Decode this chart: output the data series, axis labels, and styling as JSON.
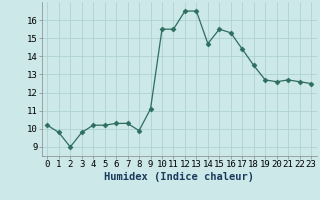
{
  "x": [
    0,
    1,
    2,
    3,
    4,
    5,
    6,
    7,
    8,
    9,
    10,
    11,
    12,
    13,
    14,
    15,
    16,
    17,
    18,
    19,
    20,
    21,
    22,
    23
  ],
  "y": [
    10.2,
    9.8,
    9.0,
    9.8,
    10.2,
    10.2,
    10.3,
    10.3,
    9.9,
    11.1,
    15.5,
    15.5,
    16.5,
    16.5,
    14.7,
    15.5,
    15.3,
    14.4,
    13.5,
    12.7,
    12.6,
    12.7,
    12.6,
    12.5
  ],
  "xlabel": "Humidex (Indice chaleur)",
  "ylim": [
    8.5,
    17.0
  ],
  "xlim": [
    -0.5,
    23.5
  ],
  "yticks": [
    9,
    10,
    11,
    12,
    13,
    14,
    15,
    16
  ],
  "xticks": [
    0,
    1,
    2,
    3,
    4,
    5,
    6,
    7,
    8,
    9,
    10,
    11,
    12,
    13,
    14,
    15,
    16,
    17,
    18,
    19,
    20,
    21,
    22,
    23
  ],
  "line_color": "#2d6e60",
  "marker": "D",
  "marker_size": 2.5,
  "bg_color": "#cce8e8",
  "grid_color": "#aacece",
  "tick_label_fontsize": 6.5,
  "xlabel_fontsize": 7.5
}
